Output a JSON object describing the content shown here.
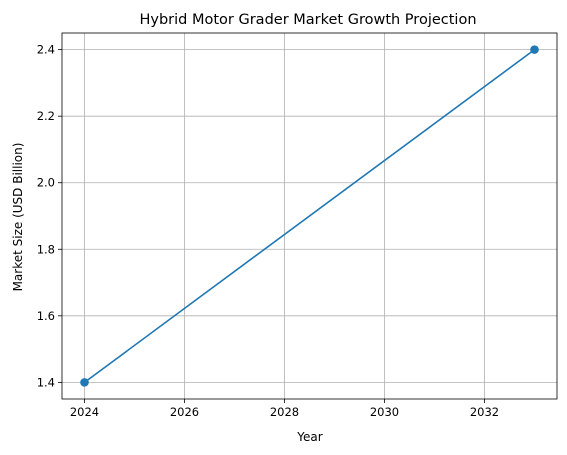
{
  "chart_data": {
    "type": "line",
    "title": "Hybrid Motor Grader Market Growth Projection",
    "xlabel": "Year",
    "ylabel": "Market Size (USD Billion)",
    "x": [
      2024,
      2033
    ],
    "series": [
      {
        "values": [
          1.4,
          2.4
        ],
        "color": "#1f77b4",
        "marker": "circle"
      }
    ],
    "xlim": [
      2023.55,
      2033.45
    ],
    "ylim": [
      1.35,
      2.45
    ],
    "xticks": [
      2024,
      2026,
      2028,
      2030,
      2032
    ],
    "xtick_labels": [
      "2024",
      "2026",
      "2028",
      "2030",
      "2032"
    ],
    "yticks": [
      1.4,
      1.6,
      1.8,
      2.0,
      2.2,
      2.4
    ],
    "ytick_labels": [
      "1.4",
      "1.6",
      "1.8",
      "2.0",
      "2.2",
      "2.4"
    ],
    "grid": true,
    "legend": "none"
  }
}
